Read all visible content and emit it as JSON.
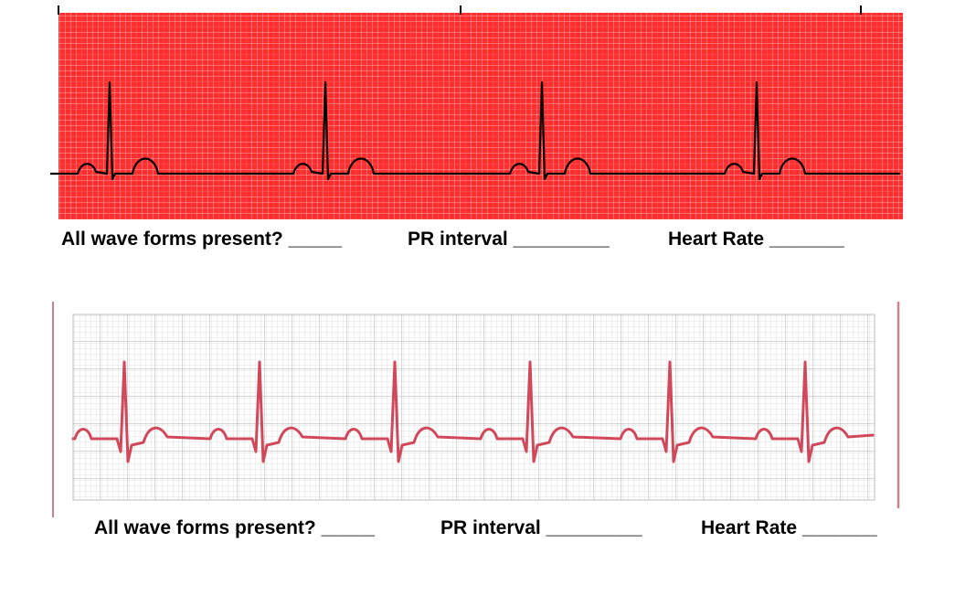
{
  "worksheet": {
    "strip1": {
      "questions": {
        "waves": "All wave forms present? _____",
        "pr": "PR interval _________",
        "rate": "Heart Rate _______"
      }
    },
    "strip2": {
      "questions": {
        "waves": "All wave forms present? _____",
        "pr": "PR interval _________",
        "rate": "Heart Rate _______"
      }
    }
  },
  "colors": {
    "strip1_paper": "#ff2d2d",
    "strip1_grid": "#ff8a8a",
    "strip1_trace": "#000000",
    "strip2_paper": "#ffffff",
    "strip2_grid": "#cfcfcf",
    "strip2_trace": "#d0485a",
    "strip2_border": "#c9848f"
  }
}
